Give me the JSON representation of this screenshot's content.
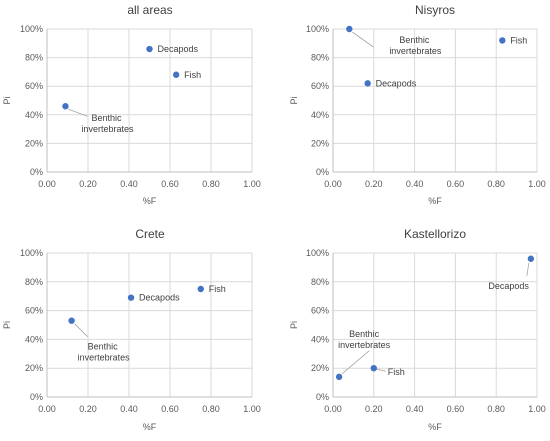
{
  "chart_data": [
    {
      "type": "scatter",
      "title": "all areas",
      "xlabel": "%F",
      "ylabel": "Pi",
      "xlim": [
        0,
        1
      ],
      "ylim": [
        0,
        100
      ],
      "x_ticks": [
        "0.00",
        "0.20",
        "0.40",
        "0.60",
        "0.80",
        "1.00"
      ],
      "y_ticks": [
        "0%",
        "20%",
        "40%",
        "60%",
        "80%",
        "100%"
      ],
      "grid": true,
      "points": [
        {
          "label": "Decapods",
          "x": 0.5,
          "y": 86
        },
        {
          "label": "Fish",
          "x": 0.63,
          "y": 68
        },
        {
          "label": "Benthic invertebrates",
          "x": 0.09,
          "y": 46
        }
      ]
    },
    {
      "type": "scatter",
      "title": "Nisyros",
      "xlabel": "%F",
      "ylabel": "Pi",
      "xlim": [
        0,
        1
      ],
      "ylim": [
        0,
        100
      ],
      "x_ticks": [
        "0.00",
        "0.20",
        "0.40",
        "0.60",
        "0.80",
        "1.00"
      ],
      "y_ticks": [
        "0%",
        "20%",
        "40%",
        "60%",
        "80%",
        "100%"
      ],
      "grid": true,
      "points": [
        {
          "label": "Benthic invertebrates",
          "x": 0.08,
          "y": 100
        },
        {
          "label": "Fish",
          "x": 0.83,
          "y": 92
        },
        {
          "label": "Decapods",
          "x": 0.17,
          "y": 62
        }
      ]
    },
    {
      "type": "scatter",
      "title": "Crete",
      "xlabel": "%F",
      "ylabel": "Pi",
      "xlim": [
        0,
        1
      ],
      "ylim": [
        0,
        100
      ],
      "x_ticks": [
        "0.00",
        "0.20",
        "0.40",
        "0.60",
        "0.80",
        "1.00"
      ],
      "y_ticks": [
        "0%",
        "20%",
        "40%",
        "60%",
        "80%",
        "100%"
      ],
      "grid": true,
      "points": [
        {
          "label": "Fish",
          "x": 0.75,
          "y": 75
        },
        {
          "label": "Decapods",
          "x": 0.41,
          "y": 69
        },
        {
          "label": "Benthic invertebrates",
          "x": 0.12,
          "y": 53
        }
      ]
    },
    {
      "type": "scatter",
      "title": "Kastellorizo",
      "xlabel": "%F",
      "ylabel": "Pi",
      "xlim": [
        0,
        1
      ],
      "ylim": [
        0,
        100
      ],
      "x_ticks": [
        "0.00",
        "0.20",
        "0.40",
        "0.60",
        "0.80",
        "1.00"
      ],
      "y_ticks": [
        "0%",
        "20%",
        "40%",
        "60%",
        "80%",
        "100%"
      ],
      "grid": true,
      "points": [
        {
          "label": "Decapods",
          "x": 0.97,
          "y": 96
        },
        {
          "label": "Fish",
          "x": 0.2,
          "y": 20
        },
        {
          "label": "Benthic invertebrates",
          "x": 0.03,
          "y": 14
        }
      ]
    }
  ],
  "marker_color": "#4472c4"
}
